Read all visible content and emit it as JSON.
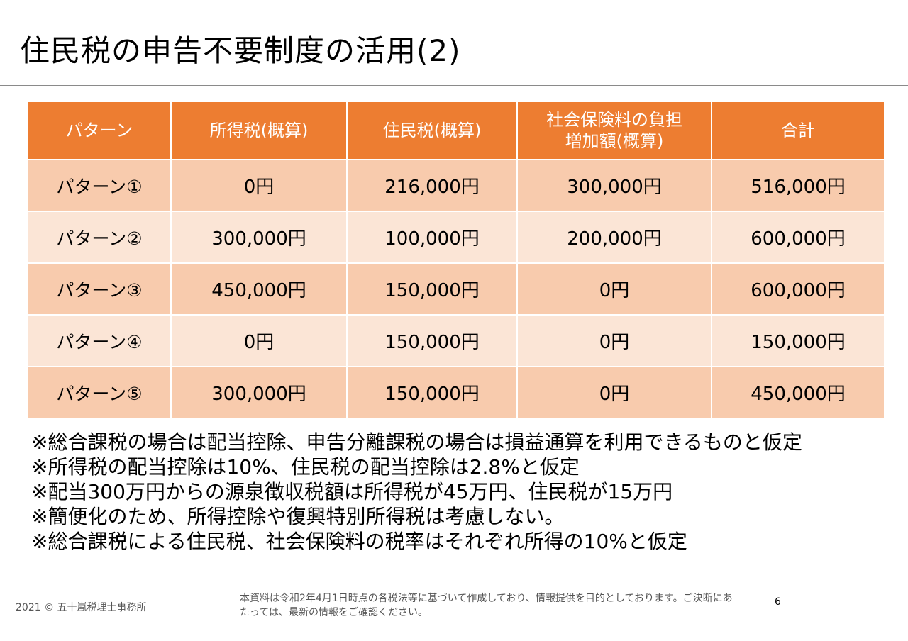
{
  "title": "住民税の申告不要制度の活用(2)",
  "table": {
    "headers": [
      "パターン",
      "所得税(概算)",
      "住民税(概算)",
      "社会保険料の負担\n増加額(概算)",
      "合計"
    ],
    "rows": [
      [
        "パターン①",
        "0円",
        "216,000円",
        "300,000円",
        "516,000円"
      ],
      [
        "パターン②",
        "300,000円",
        "100,000円",
        "200,000円",
        "600,000円"
      ],
      [
        "パターン③",
        "450,000円",
        "150,000円",
        "0円",
        "600,000円"
      ],
      [
        "パターン④",
        "0円",
        "150,000円",
        "0円",
        "150,000円"
      ],
      [
        "パターン⑤",
        "300,000円",
        "150,000円",
        "0円",
        "450,000円"
      ]
    ]
  },
  "notes": [
    "※総合課税の場合は配当控除、申告分離課税の場合は損益通算を利用できるものと仮定",
    "※所得税の配当控除は10%、住民税の配当控除は2.8%と仮定",
    "※配当300万円からの源泉徴収税額は所得税が45万円、住民税が15万円",
    "※簡便化のため、所得控除や復興特別所得税は考慮しない。",
    "※総合課税による住民税、社会保険料の税率はそれぞれ所得の10%と仮定"
  ],
  "footer": {
    "copyright": "2021 © 五十嵐税理士事務所",
    "disclaimer": "本資料は令和2年4月1日時点の各税法等に基づいて作成しており、情報提供を目的としております。ご決断にあたっては、最新の情報をご確認ください。",
    "page_number": "6"
  },
  "colors": {
    "header_bg": "#ed7d31",
    "row_odd_bg": "#f8cbad",
    "row_even_bg": "#fbe5d6",
    "rule": "#8a8a8a"
  }
}
